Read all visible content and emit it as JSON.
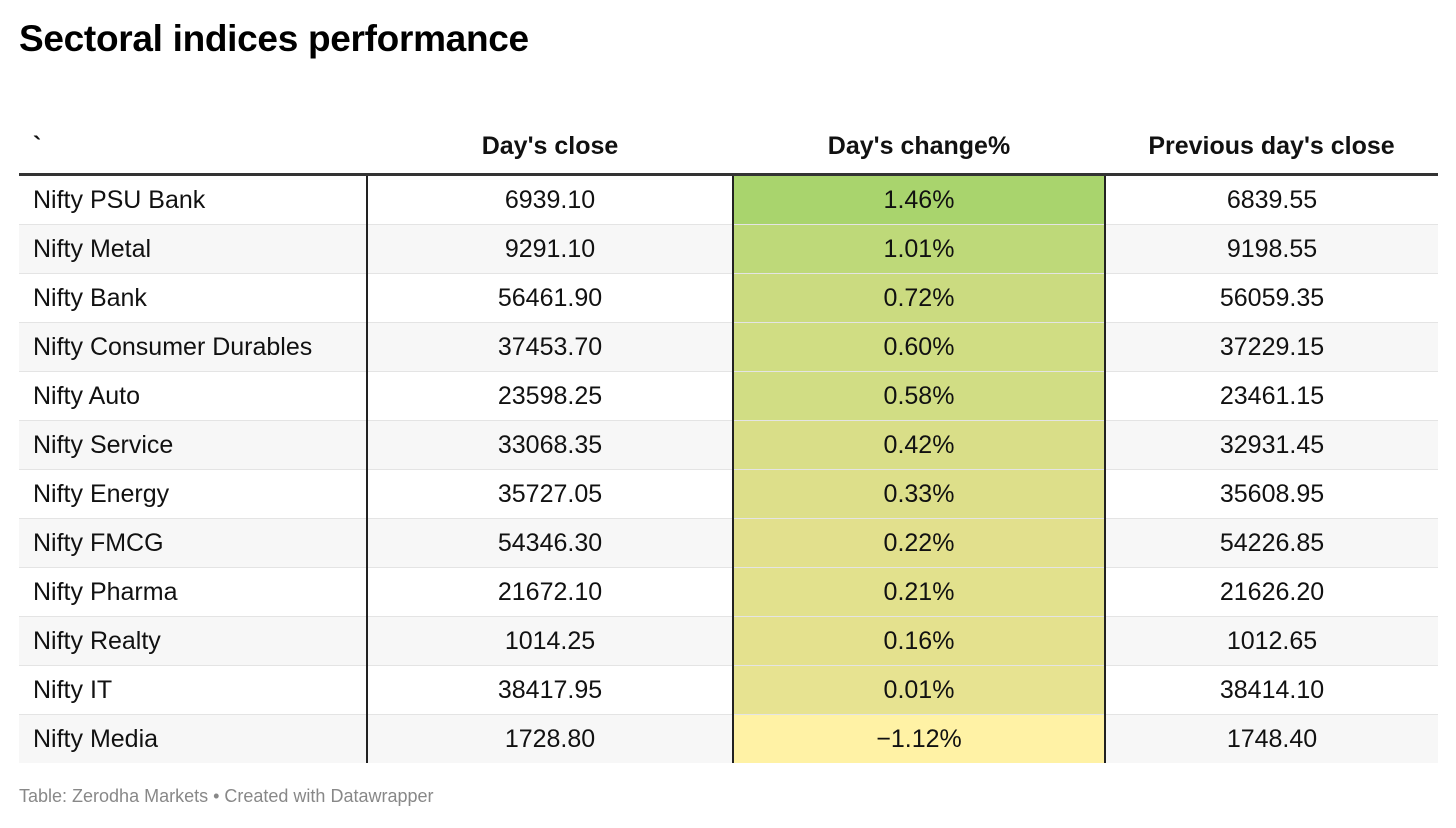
{
  "title": "Sectoral indices performance",
  "source": "Table: Zerodha Markets • Created with Datawrapper",
  "colors": {
    "scale_high": "#a9d46d",
    "scale_mid": "#e4e18e",
    "scale_low": "#fff2a5"
  },
  "chart_data": {
    "type": "table",
    "columns": [
      "`",
      "Day's close",
      "Day's change%",
      "Previous day's close"
    ],
    "rows": [
      {
        "index": "Nifty PSU Bank",
        "close": "6939.10",
        "change": "1.46%",
        "prev": "6839.55",
        "change_value": 1.46
      },
      {
        "index": "Nifty Metal",
        "close": "9291.10",
        "change": "1.01%",
        "prev": "9198.55",
        "change_value": 1.01
      },
      {
        "index": "Nifty Bank",
        "close": "56461.90",
        "change": "0.72%",
        "prev": "56059.35",
        "change_value": 0.72
      },
      {
        "index": "Nifty Consumer Durables",
        "close": "37453.70",
        "change": "0.60%",
        "prev": "37229.15",
        "change_value": 0.6
      },
      {
        "index": "Nifty Auto",
        "close": "23598.25",
        "change": "0.58%",
        "prev": "23461.15",
        "change_value": 0.58
      },
      {
        "index": "Nifty Service",
        "close": "33068.35",
        "change": "0.42%",
        "prev": "32931.45",
        "change_value": 0.42
      },
      {
        "index": "Nifty Energy",
        "close": "35727.05",
        "change": "0.33%",
        "prev": "35608.95",
        "change_value": 0.33
      },
      {
        "index": "Nifty FMCG",
        "close": "54346.30",
        "change": "0.22%",
        "prev": "54226.85",
        "change_value": 0.22
      },
      {
        "index": "Nifty Pharma",
        "close": "21672.10",
        "change": "0.21%",
        "prev": "21626.20",
        "change_value": 0.21
      },
      {
        "index": "Nifty Realty",
        "close": "1014.25",
        "change": "0.16%",
        "prev": "1012.65",
        "change_value": 0.16
      },
      {
        "index": "Nifty IT",
        "close": "38417.95",
        "change": "0.01%",
        "prev": "38414.10",
        "change_value": 0.01
      },
      {
        "index": "Nifty Media",
        "close": "1728.80",
        "change": "−1.12%",
        "prev": "1748.40",
        "change_value": -1.12
      }
    ]
  }
}
